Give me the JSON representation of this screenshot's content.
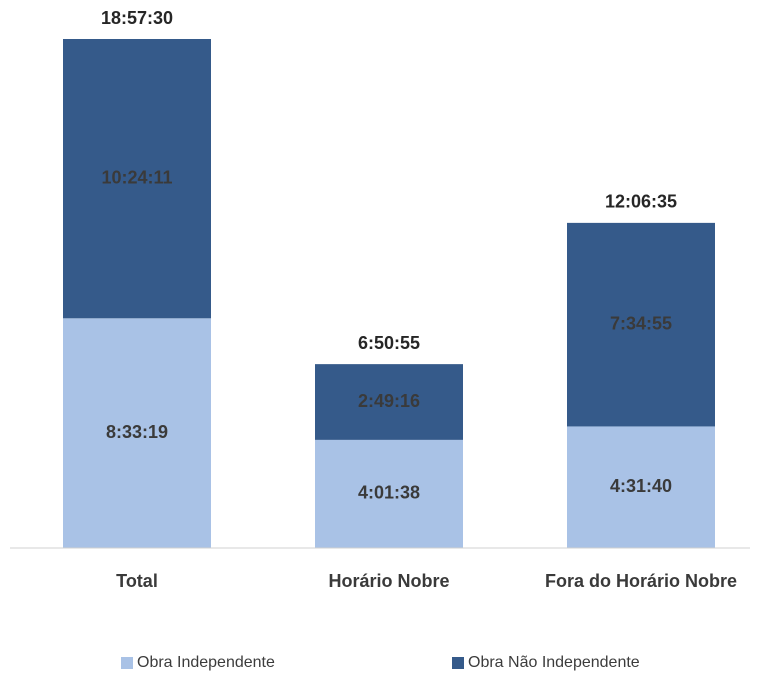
{
  "chart_data": {
    "type": "bar",
    "stacked": true,
    "categories": [
      "Total",
      "Horário Nobre",
      "Fora do Horário Nobre"
    ],
    "series": [
      {
        "name": "Obra Independente",
        "color": "#a9c2e6",
        "values_seconds": [
          30799,
          14498,
          16300
        ],
        "labels": [
          "8:33:19",
          "4:01:38",
          "4:31:40"
        ]
      },
      {
        "name": "Obra Não Independente",
        "color": "#355a8a",
        "values_seconds": [
          37451,
          10156,
          27295
        ],
        "labels": [
          "10:24:11",
          "2:49:16",
          "7:34:55"
        ]
      }
    ],
    "totals_seconds": [
      68250,
      24654,
      43595
    ],
    "total_labels": [
      "18:57:30",
      "6:50:55",
      "12:06:35"
    ],
    "value_unit": "h:mm:ss",
    "ylim": [
      0,
      68250
    ],
    "grid": false,
    "legend": "bottom"
  }
}
